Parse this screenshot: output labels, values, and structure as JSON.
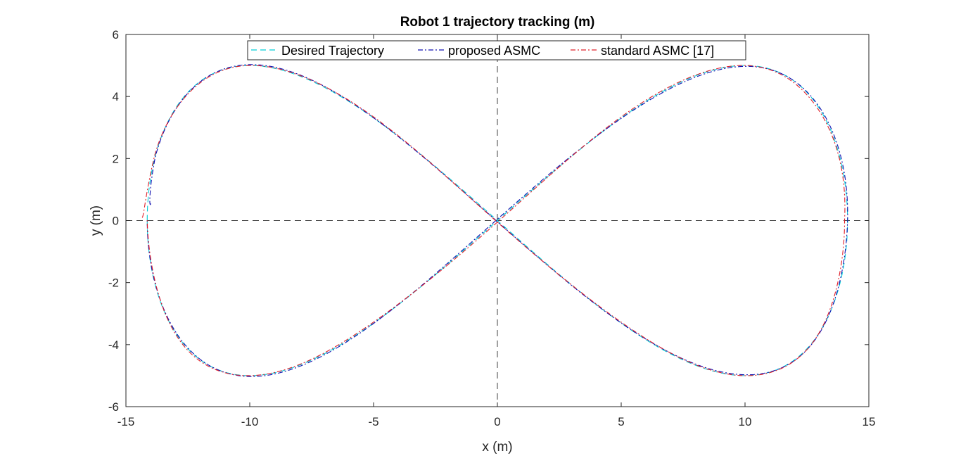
{
  "chart_data": {
    "type": "line",
    "title": "Robot 1 trajectory tracking (m)",
    "xlabel": "x (m)",
    "ylabel": "y (m)",
    "xlim": [
      -15,
      15
    ],
    "ylim": [
      -6,
      6
    ],
    "xticks": [
      -15,
      -10,
      -5,
      0,
      5,
      10,
      15
    ],
    "yticks": [
      -6,
      -4,
      -2,
      0,
      2,
      4,
      6
    ],
    "xtick_labels": [
      "-15",
      "-10",
      "-5",
      "0",
      "5",
      "10",
      "15"
    ],
    "ytick_labels": [
      "-6",
      "-4",
      "-2",
      "0",
      "2",
      "4",
      "6"
    ],
    "grid": false,
    "reference_lines": [
      {
        "orientation": "horizontal",
        "value": 0,
        "style": "dashed",
        "color": "#404040"
      },
      {
        "orientation": "vertical",
        "value": 0,
        "style": "dashed",
        "color": "#404040"
      }
    ],
    "legend_position": "top-center",
    "curve": {
      "shape": "figure-eight (lemniscate)",
      "x_amplitude": 14.14,
      "y_amplitude": 5.0,
      "lobe_peaks": [
        [
          -8.66,
          5.0
        ],
        [
          8.66,
          5.0
        ],
        [
          -8.66,
          -5.0
        ],
        [
          8.66,
          -5.0
        ]
      ]
    },
    "series": [
      {
        "name": "Desired Trajectory",
        "style": "dashed",
        "color": "#00cfd6",
        "start_point": [
          -14.14,
          0
        ]
      },
      {
        "name": "proposed ASMC",
        "style": "dash-dot",
        "color": "#1010b0",
        "start_point": [
          -14.0,
          0.55
        ]
      },
      {
        "name": "standard ASMC [17]",
        "style": "dash-dot",
        "color": "#e0202a",
        "start_point": [
          -14.35,
          0.1
        ]
      }
    ]
  }
}
